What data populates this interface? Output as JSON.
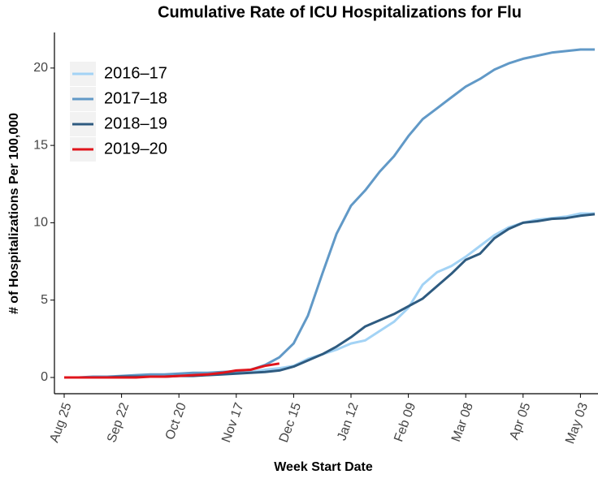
{
  "chart_data": {
    "type": "line",
    "title": "Cumulative Rate of ICU Hospitalizations for Flu",
    "x_label": "Week Start Date",
    "y_label": "# of Hospitalizations Per 100,000",
    "categories": [
      "Aug 25",
      null,
      null,
      null,
      "Sep 22",
      null,
      null,
      null,
      "Oct 20",
      null,
      null,
      null,
      "Nov 17",
      null,
      null,
      null,
      "Dec 15",
      null,
      null,
      null,
      "Jan 12",
      null,
      null,
      null,
      "Feb 09",
      null,
      null,
      null,
      "Mar 08",
      null,
      null,
      null,
      "Apr 05",
      null,
      null,
      null,
      "May 03",
      null
    ],
    "ylim": [
      -1.05,
      22.3
    ],
    "yticks": [
      0,
      5,
      10,
      15,
      20
    ],
    "grid": false,
    "legend": "top-left",
    "series": [
      {
        "name": "2016–17",
        "color": "#a3d3f5",
        "values": [
          0,
          0,
          0,
          0,
          0.05,
          0.05,
          0.1,
          0.1,
          0.15,
          0.15,
          0.2,
          0.25,
          0.3,
          0.35,
          0.5,
          0.6,
          0.75,
          1.2,
          1.5,
          1.8,
          2.2,
          2.4,
          3.0,
          3.6,
          4.5,
          6.0,
          6.8,
          7.2,
          7.8,
          8.5,
          9.2,
          9.7,
          10.0,
          10.2,
          10.3,
          10.4,
          10.6,
          10.6
        ]
      },
      {
        "name": "2017–18",
        "color": "#6199c7",
        "values": [
          0,
          0,
          0.05,
          0.05,
          0.1,
          0.15,
          0.2,
          0.2,
          0.25,
          0.3,
          0.3,
          0.35,
          0.4,
          0.5,
          0.8,
          1.3,
          2.2,
          4.0,
          6.7,
          9.3,
          11.1,
          12.1,
          13.3,
          14.3,
          15.6,
          16.7,
          17.4,
          18.1,
          18.8,
          19.3,
          19.9,
          20.3,
          20.6,
          20.8,
          21.0,
          21.1,
          21.2,
          21.2
        ]
      },
      {
        "name": "2018–19",
        "color": "#2e5b80",
        "values": [
          0,
          0,
          0,
          0,
          0.05,
          0.05,
          0.05,
          0.05,
          0.1,
          0.1,
          0.15,
          0.2,
          0.25,
          0.3,
          0.35,
          0.45,
          0.7,
          1.1,
          1.5,
          2.0,
          2.6,
          3.3,
          3.7,
          4.1,
          4.6,
          5.1,
          5.9,
          6.7,
          7.6,
          8.0,
          9.0,
          9.6,
          10.0,
          10.1,
          10.25,
          10.3,
          10.45,
          10.55
        ]
      },
      {
        "name": "2019–20",
        "color": "#e0141b",
        "values": [
          0,
          0,
          0,
          0,
          0,
          0,
          0.05,
          0.05,
          0.1,
          0.15,
          0.2,
          0.3,
          0.45,
          0.5,
          0.75,
          0.9,
          null,
          null,
          null,
          null,
          null,
          null,
          null,
          null,
          null,
          null,
          null,
          null,
          null,
          null,
          null,
          null,
          null,
          null,
          null,
          null,
          null,
          null
        ]
      }
    ]
  }
}
